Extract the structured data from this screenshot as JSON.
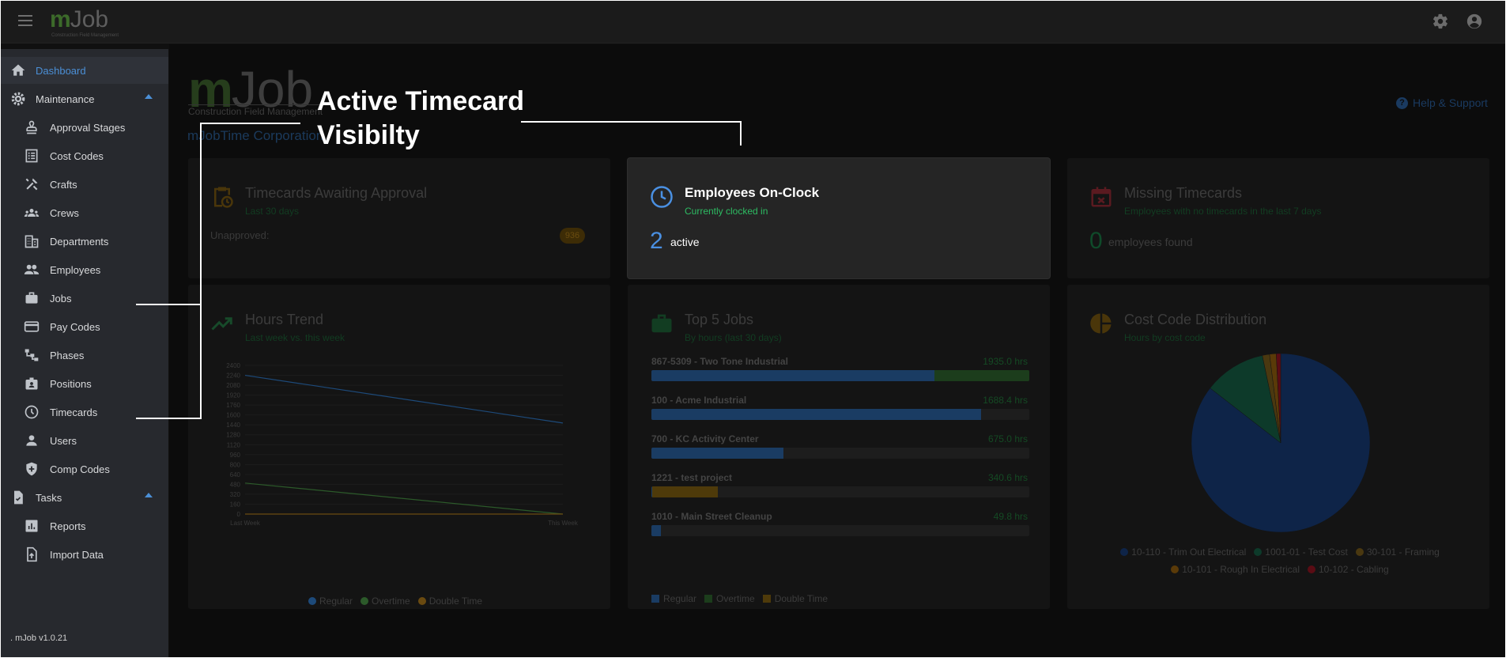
{
  "topbar": {
    "logo_m": "m",
    "logo_job": "Job",
    "logo_sub": "Construction Field Management",
    "icons": [
      "menu-icon",
      "gear-icon",
      "account-circle-icon"
    ]
  },
  "sidebar": {
    "items": [
      {
        "label": "Dashboard",
        "icon": "home-icon",
        "active": true
      },
      {
        "label": "Maintenance",
        "icon": "gear-icon",
        "expanded": true
      },
      {
        "label": "Approval Stages",
        "icon": "stamp-icon"
      },
      {
        "label": "Cost Codes",
        "icon": "list-icon"
      },
      {
        "label": "Crafts",
        "icon": "tools-icon"
      },
      {
        "label": "Crews",
        "icon": "group-icon"
      },
      {
        "label": "Departments",
        "icon": "building-icon"
      },
      {
        "label": "Employees",
        "icon": "people-icon"
      },
      {
        "label": "Jobs",
        "icon": "briefcase-icon"
      },
      {
        "label": "Pay Codes",
        "icon": "credit-card-icon"
      },
      {
        "label": "Phases",
        "icon": "hierarchy-icon"
      },
      {
        "label": "Positions",
        "icon": "badge-icon"
      },
      {
        "label": "Timecards",
        "icon": "clock-icon"
      },
      {
        "label": "Users",
        "icon": "person-icon"
      },
      {
        "label": "Comp Codes",
        "icon": "shield-icon"
      },
      {
        "label": "Tasks",
        "icon": "task-icon",
        "expanded": true
      },
      {
        "label": "Reports",
        "icon": "chart-icon"
      },
      {
        "label": "Import Data",
        "icon": "import-icon"
      }
    ],
    "version": ". mJob v1.0.21"
  },
  "main": {
    "brand_m": "m",
    "brand_job": "Job",
    "brand_sub": "Construction Field Management",
    "company": "mJobTime Corporation",
    "help": "Help & Support"
  },
  "cards": {
    "awaiting": {
      "title": "Timecards Awaiting Approval",
      "subtitle": "Last 30 days",
      "label": "Unapproved:",
      "count": "936"
    },
    "onclock": {
      "title": "Employees On-Clock",
      "subtitle": "Currently clocked in",
      "count": "2",
      "unit": "active"
    },
    "missing": {
      "title": "Missing Timecards",
      "subtitle": "Employees with no timecards in the last 7 days",
      "count": "0",
      "unit": "employees found"
    },
    "trend": {
      "title": "Hours Trend",
      "subtitle": "Last week vs. this week"
    },
    "top5": {
      "title": "Top 5 Jobs",
      "subtitle": "By hours (last 30 days)"
    },
    "costcode": {
      "title": "Cost Code Distribution",
      "subtitle": "Hours by cost code"
    }
  },
  "chart_data": [
    {
      "type": "line",
      "title": "Hours Trend",
      "categories": [
        "Last Week",
        "This Week"
      ],
      "ylim": [
        0,
        2400
      ],
      "yticks": [
        "2400",
        "2240",
        "2080",
        "1920",
        "1760",
        "1600",
        "1440",
        "1280",
        "1120",
        "960",
        "800",
        "640",
        "480",
        "320",
        "160",
        "0"
      ],
      "series": [
        {
          "name": "Regular",
          "values": [
            2240,
            1470
          ],
          "color": "#1d4a7a"
        },
        {
          "name": "Overtime",
          "values": [
            500,
            0
          ],
          "color": "#2c5a2a"
        },
        {
          "name": "Double Time",
          "values": [
            0,
            0
          ],
          "color": "#6a4a10"
        }
      ]
    },
    {
      "type": "bar",
      "title": "Top 5 Jobs",
      "categories": [
        "867-5309 - Two Tone Industrial",
        "100 - Acme Industrial",
        "700 - KC Activity Center",
        "1221 - test project",
        "1010 - Main Street Cleanup"
      ],
      "totals": [
        "1935.0 hrs",
        "1688.4 hrs",
        "675.0 hrs",
        "340.6 hrs",
        "49.8 hrs"
      ],
      "max": 1935,
      "series": [
        {
          "name": "Regular",
          "values": [
            1450,
            1688.4,
            675,
            5,
            49.8
          ],
          "color": "#1a3c63"
        },
        {
          "name": "Overtime",
          "values": [
            485,
            0,
            0,
            0,
            0
          ],
          "color": "#1c3d1c"
        },
        {
          "name": "Double Time",
          "values": [
            0,
            0,
            0,
            335.6,
            0
          ],
          "color": "#4e3a0a"
        }
      ]
    },
    {
      "type": "pie",
      "title": "Cost Code Distribution",
      "labels": [
        "10-110 - Trim Out Electrical",
        "1001-01 - Test Cost",
        "30-101 - Framing",
        "10-101 - Rough In Electrical",
        "10-102 - Cabling"
      ],
      "values": [
        85.5,
        11.2,
        1.3,
        1.2,
        0.8
      ],
      "colors": [
        "#0e2448",
        "#0d3a2a",
        "#4a3810",
        "#5a3a08",
        "#5a0c14"
      ]
    }
  ],
  "overlay": {
    "callout_line1": "Active Timecard",
    "callout_line2": "Visibilty"
  }
}
